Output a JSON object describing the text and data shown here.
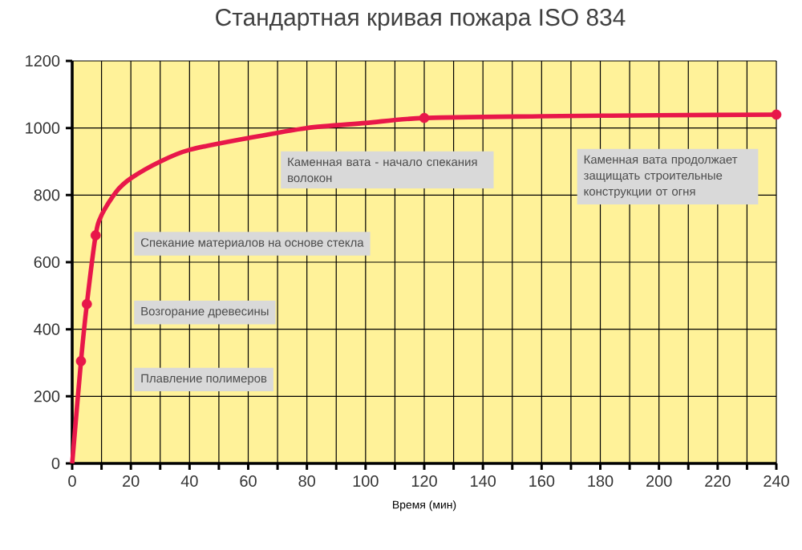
{
  "chart_data": {
    "type": "line",
    "title": "Стандартная кривая пожара ISO 834",
    "xlabel": "Время (мин)",
    "x": [
      0,
      3,
      5,
      8,
      10,
      15,
      20,
      30,
      40,
      60,
      80,
      100,
      120,
      160,
      200,
      240
    ],
    "series": [
      {
        "color": "#e8174a",
        "marker": "none",
        "values": [
          0,
          305,
          475,
          680,
          740,
          810,
          850,
          900,
          935,
          970,
          1000,
          1015,
          1030,
          1035,
          1038,
          1040
        ]
      },
      {
        "type": "scatter",
        "color": "#e8174a",
        "marker": "circle",
        "x": [
          3,
          5,
          8,
          120,
          240
        ],
        "values": [
          305,
          475,
          680,
          1030,
          1040
        ]
      }
    ],
    "xlim": [
      0,
      240
    ],
    "xticks": [
      0,
      {
        "value": 10,
        "label": null
      },
      20,
      {
        "value": 30,
        "label": null
      },
      40,
      {
        "value": 50,
        "label": null
      },
      60,
      {
        "value": 70,
        "label": null
      },
      80,
      {
        "value": 90,
        "label": null
      },
      100,
      {
        "value": 110,
        "label": null
      },
      120,
      {
        "value": 130,
        "label": null
      },
      140,
      {
        "value": 150,
        "label": null
      },
      160,
      {
        "value": 170,
        "label": null
      },
      180,
      {
        "value": 190,
        "label": null
      },
      200,
      {
        "value": 210,
        "label": null
      },
      220,
      {
        "value": 230,
        "label": null
      },
      240
    ],
    "ylim": [
      0,
      1200
    ],
    "yticks": [
      0,
      200,
      400,
      600,
      800,
      1000,
      1200
    ],
    "grid": true,
    "annotations": [
      "Плавление полимеров",
      "Возгорание древесины",
      "Спекание материалов на основе стекла",
      "Каменная вата - начало спекания волокон",
      "Каменная вата продолжает защищать строительные конструкции от огня"
    ]
  }
}
